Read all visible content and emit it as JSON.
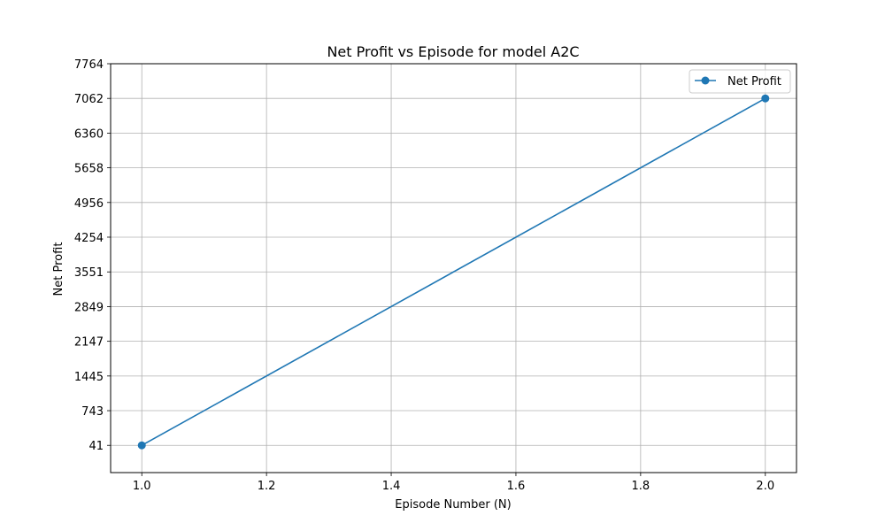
{
  "chart_data": {
    "type": "line",
    "title": "Net Profit vs Episode for model A2C",
    "xlabel": "Episode Number (N)",
    "ylabel": "Net Profit",
    "xlim": [
      0.95,
      2.05
    ],
    "ylim": [
      -510,
      7764
    ],
    "x_ticks": [
      1.0,
      1.2,
      1.4,
      1.6,
      1.8,
      2.0
    ],
    "x_tick_labels": [
      "1.0",
      "1.2",
      "1.4",
      "1.6",
      "1.8",
      "2.0"
    ],
    "y_ticks": [
      41,
      743,
      1445,
      2147,
      2849,
      3551,
      4254,
      4956,
      5658,
      6360,
      7062,
      7764
    ],
    "y_tick_labels": [
      "41",
      "743",
      "1445",
      "2147",
      "2849",
      "3551",
      "4254",
      "4956",
      "5658",
      "6360",
      "7062",
      "7764"
    ],
    "grid": true,
    "legend_position": "top-right",
    "series": [
      {
        "name": "Net Profit",
        "color": "#1f77b4",
        "marker": "circle",
        "x": [
          1,
          2
        ],
        "y": [
          41,
          7062
        ]
      }
    ]
  }
}
